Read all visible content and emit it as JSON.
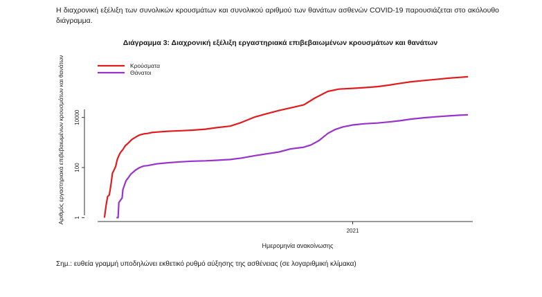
{
  "intro_text": "Η διαχρονική εξέλιξη των συνολικών κρουσμάτων και συνολικού αριθμού των θανάτων ασθενών COVID-19 παρουσιάζεται στο ακόλουθο διάγραμμα.",
  "note_text": "Σημ.: ευθεία γραμμή υποδηλώνει εκθετικό ρυθμό αύξησης της ασθένειας (σε λογαριθμική κλίμακα)",
  "chart_data": {
    "type": "line",
    "title": "Διάγραμμα 3: Διαχρονική εξέλιξη εργαστηριακά επιβεβαιωμένων κρουσμάτων και θανάτων",
    "xlabel": "Ημερομηνία ανακοίνωσης",
    "ylabel": "Αριθμός εργαστηριακά επιβεβαιωμένων κρουσμάτων και θανάτων",
    "y_scale": "log",
    "ylim": [
      0.7,
      3000000
    ],
    "xlim": [
      "2020-02-01",
      "2021-05-31"
    ],
    "y_ticks": [
      1,
      100,
      10000
    ],
    "y_tick_labels": [
      "1",
      "100",
      "10000"
    ],
    "x_ticks": [
      "2021-01-01"
    ],
    "x_tick_labels": [
      "2021"
    ],
    "grid": false,
    "legend_position": "top-left",
    "series": [
      {
        "name": "Κρούσματα",
        "color": "#e31a1c",
        "points": [
          [
            "2020-02-26",
            1
          ],
          [
            "2020-02-28",
            3
          ],
          [
            "2020-03-01",
            7
          ],
          [
            "2020-03-03",
            8
          ],
          [
            "2020-03-05",
            20
          ],
          [
            "2020-03-07",
            60
          ],
          [
            "2020-03-09",
            80
          ],
          [
            "2020-03-11",
            110
          ],
          [
            "2020-03-13",
            210
          ],
          [
            "2020-03-15",
            300
          ],
          [
            "2020-03-17",
            400
          ],
          [
            "2020-03-20",
            520
          ],
          [
            "2020-03-23",
            750
          ],
          [
            "2020-03-26",
            900
          ],
          [
            "2020-03-31",
            1300
          ],
          [
            "2020-04-05",
            1650
          ],
          [
            "2020-04-10",
            2000
          ],
          [
            "2020-04-15",
            2200
          ],
          [
            "2020-04-20",
            2300
          ],
          [
            "2020-04-25",
            2500
          ],
          [
            "2020-05-01",
            2600
          ],
          [
            "2020-05-15",
            2800
          ],
          [
            "2020-06-01",
            2950
          ],
          [
            "2020-06-15",
            3100
          ],
          [
            "2020-07-01",
            3400
          ],
          [
            "2020-07-15",
            3900
          ],
          [
            "2020-08-01",
            4500
          ],
          [
            "2020-08-15",
            6300
          ],
          [
            "2020-09-01",
            10500
          ],
          [
            "2020-09-15",
            14000
          ],
          [
            "2020-10-01",
            19000
          ],
          [
            "2020-10-15",
            24000
          ],
          [
            "2020-11-01",
            32000
          ],
          [
            "2020-11-15",
            60000
          ],
          [
            "2020-12-01",
            110000
          ],
          [
            "2020-12-15",
            135000
          ],
          [
            "2021-01-01",
            145000
          ],
          [
            "2021-01-15",
            155000
          ],
          [
            "2021-02-01",
            170000
          ],
          [
            "2021-02-15",
            195000
          ],
          [
            "2021-03-01",
            230000
          ],
          [
            "2021-03-15",
            265000
          ],
          [
            "2021-04-01",
            300000
          ],
          [
            "2021-04-15",
            330000
          ],
          [
            "2021-05-01",
            370000
          ],
          [
            "2021-05-15",
            400000
          ],
          [
            "2021-05-25",
            420000
          ]
        ]
      },
      {
        "name": "Θάνατοι",
        "color": "#9932cc",
        "points": [
          [
            "2020-03-12",
            1
          ],
          [
            "2020-03-14",
            1
          ],
          [
            "2020-03-15",
            4
          ],
          [
            "2020-03-17",
            5
          ],
          [
            "2020-03-19",
            6
          ],
          [
            "2020-03-20",
            13
          ],
          [
            "2020-03-22",
            20
          ],
          [
            "2020-03-24",
            30
          ],
          [
            "2020-03-27",
            40
          ],
          [
            "2020-03-30",
            55
          ],
          [
            "2020-04-05",
            80
          ],
          [
            "2020-04-10",
            100
          ],
          [
            "2020-04-15",
            115
          ],
          [
            "2020-04-20",
            120
          ],
          [
            "2020-05-01",
            140
          ],
          [
            "2020-05-15",
            155
          ],
          [
            "2020-06-01",
            170
          ],
          [
            "2020-06-15",
            180
          ],
          [
            "2020-07-01",
            185
          ],
          [
            "2020-07-15",
            195
          ],
          [
            "2020-08-01",
            210
          ],
          [
            "2020-08-15",
            240
          ],
          [
            "2020-09-01",
            300
          ],
          [
            "2020-09-15",
            350
          ],
          [
            "2020-10-01",
            420
          ],
          [
            "2020-10-15",
            550
          ],
          [
            "2020-11-01",
            650
          ],
          [
            "2020-11-10",
            800
          ],
          [
            "2020-11-20",
            1200
          ],
          [
            "2020-12-01",
            2300
          ],
          [
            "2020-12-10",
            3300
          ],
          [
            "2020-12-20",
            4200
          ],
          [
            "2021-01-01",
            5000
          ],
          [
            "2021-01-15",
            5600
          ],
          [
            "2021-02-01",
            6000
          ],
          [
            "2021-02-15",
            6600
          ],
          [
            "2021-03-01",
            7400
          ],
          [
            "2021-03-15",
            8600
          ],
          [
            "2021-04-01",
            9800
          ],
          [
            "2021-04-15",
            10600
          ],
          [
            "2021-05-01",
            11500
          ],
          [
            "2021-05-15",
            12300
          ],
          [
            "2021-05-25",
            12800
          ]
        ]
      }
    ]
  }
}
